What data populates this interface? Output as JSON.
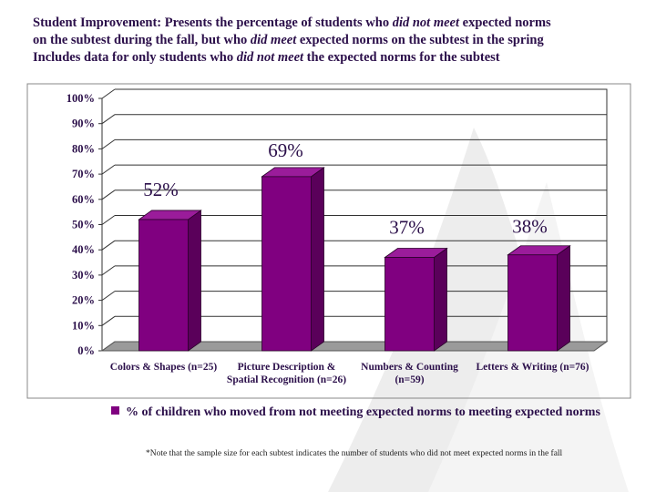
{
  "header": {
    "line1": {
      "a": "Student Improvement: Presents the percentage of students who ",
      "b": "did not meet",
      "c": " expected norms"
    },
    "line2": {
      "a": "on the subtest during the fall, but who ",
      "b": "did meet",
      "c": " expected norms on the subtest in the spring"
    },
    "line3": {
      "a": "Includes data for only students who ",
      "b": "did not meet",
      "c": " the expected norms for the subtest"
    }
  },
  "chart_data": {
    "type": "bar",
    "categories": [
      [
        "Colors & Shapes (n=25)"
      ],
      [
        "Picture Description &",
        "Spatial Recognition (n=26)"
      ],
      [
        "Numbers & Counting",
        "(n=59)"
      ],
      [
        "Letters & Writing (n=76)"
      ]
    ],
    "series": [
      {
        "name": "% of children who moved from not meeting expected norms to meeting expected norms",
        "values": [
          52,
          69,
          37,
          38
        ]
      }
    ],
    "data_labels": [
      "52%",
      "69%",
      "37%",
      "38%"
    ],
    "y_ticks": [
      "0%",
      "10%",
      "20%",
      "30%",
      "40%",
      "50%",
      "60%",
      "70%",
      "80%",
      "90%",
      "100%"
    ],
    "ylim": [
      0,
      100
    ],
    "grid": true,
    "three_d": true,
    "legend_position": "bottom",
    "colors": {
      "bar": "#800080",
      "bar_side": "#5a005a",
      "bar_top": "#9a1c9a",
      "floor": "#9a9a9a",
      "text": "#2b0f4a"
    }
  },
  "footnote": "*Note that the  sample size for each subtest indicates the number of students who did not meet expected norms in the fall"
}
